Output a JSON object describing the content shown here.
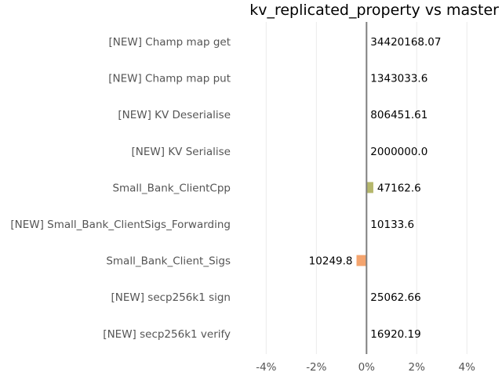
{
  "chart_data": {
    "type": "bar",
    "orientation": "horizontal",
    "title": "kv_replicated_property vs master",
    "xlabel": "",
    "ylabel": "",
    "xlim": [
      -5.2,
      5.4
    ],
    "x_ticks": [
      -4,
      -2,
      0,
      2,
      4
    ],
    "x_tick_labels": [
      "-4%",
      "-2%",
      "0%",
      "2%",
      "4%"
    ],
    "grid": true,
    "categories": [
      "[NEW] Champ map get",
      "[NEW] Champ map put",
      "[NEW] KV Deserialise",
      "[NEW] KV Serialise",
      "Small_Bank_ClientCpp",
      "[NEW] Small_Bank_ClientSigs_Forwarding",
      "Small_Bank_Client_Sigs",
      "[NEW] secp256k1 sign",
      "[NEW] secp256k1 verify"
    ],
    "values": [
      0,
      0,
      0,
      0,
      0.27,
      0,
      -0.4,
      0,
      0
    ],
    "data_labels": [
      "34420168.07",
      "1343033.6",
      "806451.61",
      "2000000.0",
      "47162.6",
      "10133.6",
      "10249.8",
      "25062.66",
      "16920.19"
    ],
    "colors": {
      "positive": "#b5b76b",
      "negative": "#f4a46e",
      "zero_line": "#808080",
      "grid": "#ebebeb"
    }
  }
}
